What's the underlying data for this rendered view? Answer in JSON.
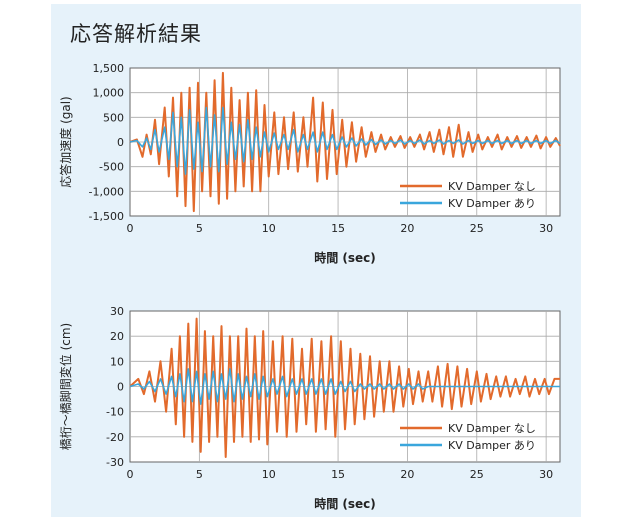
{
  "title": "応答解析結果",
  "colors": {
    "without": "#e26a2c",
    "with": "#3aa6dc",
    "panel": "#e6f2fa"
  },
  "chart_data": [
    {
      "type": "line",
      "title": "",
      "xlabel": "時間 (sec)",
      "ylabel": "応答加速度 (gal)",
      "xlim": [
        0,
        31
      ],
      "ylim": [
        -1500,
        1500
      ],
      "xticks": [
        0,
        5,
        10,
        15,
        20,
        25,
        30
      ],
      "yticks": [
        1500,
        1000,
        500,
        0,
        -500,
        -1000,
        -1500
      ],
      "ytick_labels": [
        "1,500",
        "1,000",
        "500",
        "0",
        "-500",
        "-1,000",
        "-1,500"
      ],
      "grid": true,
      "legend": "bottom-right",
      "series": [
        {
          "name": "KV Damper なし",
          "color": "#e26a2c",
          "x": [
            0,
            0.5,
            0.9,
            1.2,
            1.5,
            1.8,
            2.1,
            2.5,
            2.8,
            3.1,
            3.4,
            3.7,
            4.0,
            4.3,
            4.6,
            4.9,
            5.2,
            5.5,
            5.8,
            6.1,
            6.4,
            6.7,
            7.0,
            7.3,
            7.6,
            7.9,
            8.2,
            8.5,
            8.8,
            9.1,
            9.4,
            9.7,
            10.0,
            10.4,
            10.7,
            11.1,
            11.4,
            11.8,
            12.1,
            12.5,
            12.8,
            13.2,
            13.5,
            13.9,
            14.2,
            14.6,
            14.9,
            15.3,
            15.6,
            16.0,
            16.3,
            16.7,
            17.0,
            17.4,
            17.7,
            18.1,
            18.4,
            18.8,
            19.1,
            19.5,
            19.8,
            20.2,
            20.5,
            20.9,
            21.2,
            21.6,
            21.9,
            22.3,
            22.6,
            23.0,
            23.3,
            23.7,
            24.0,
            24.4,
            24.7,
            25.1,
            25.4,
            25.8,
            26.1,
            26.5,
            26.8,
            27.2,
            27.5,
            27.9,
            28.2,
            28.6,
            28.9,
            29.3,
            29.6,
            30.0,
            30.3,
            30.7,
            31.0
          ],
          "values": [
            0,
            50,
            -300,
            150,
            -250,
            450,
            -450,
            700,
            -700,
            900,
            -1100,
            1000,
            -1300,
            1100,
            -1400,
            1200,
            -1000,
            1000,
            -1100,
            1250,
            -1250,
            1400,
            -1150,
            1100,
            -1000,
            850,
            -900,
            1000,
            -1000,
            1050,
            -1000,
            750,
            -700,
            600,
            -650,
            500,
            -550,
            600,
            -600,
            500,
            -500,
            900,
            -800,
            800,
            -750,
            650,
            -650,
            450,
            -500,
            400,
            -400,
            300,
            -300,
            200,
            -200,
            150,
            -150,
            100,
            -100,
            120,
            -120,
            100,
            -100,
            150,
            -150,
            200,
            -200,
            250,
            -250,
            300,
            -300,
            350,
            -300,
            200,
            -200,
            150,
            -150,
            100,
            -100,
            150,
            -150,
            100,
            -100,
            120,
            -120,
            100,
            -100,
            130,
            -130,
            100,
            -100,
            80,
            -80
          ]
        },
        {
          "name": "KV Damper あり",
          "color": "#3aa6dc",
          "x": [
            0,
            0.5,
            0.9,
            1.2,
            1.5,
            1.8,
            2.1,
            2.5,
            2.8,
            3.1,
            3.4,
            3.7,
            4.0,
            4.3,
            4.6,
            4.9,
            5.2,
            5.5,
            5.8,
            6.1,
            6.4,
            6.7,
            7.0,
            7.3,
            7.6,
            7.9,
            8.2,
            8.5,
            8.8,
            9.1,
            9.4,
            9.7,
            10.0,
            10.4,
            10.7,
            11.1,
            11.4,
            11.8,
            12.1,
            12.5,
            12.8,
            13.2,
            13.5,
            13.9,
            14.2,
            14.6,
            14.9,
            15.3,
            15.6,
            16.0,
            16.3,
            16.7,
            17.0,
            17.4,
            17.7,
            18.1,
            18.4,
            18.8,
            19.1,
            19.5,
            19.8,
            20.2,
            20.5,
            20.9,
            21.2,
            21.6,
            21.9,
            22.3,
            22.6,
            23.0,
            23.3,
            23.7,
            24.0,
            24.4,
            24.7,
            25.1,
            25.4,
            25.8,
            26.1,
            26.5,
            26.8,
            27.2,
            27.5,
            27.9,
            28.2,
            28.6,
            28.9,
            29.3,
            29.6,
            30.0,
            30.3,
            30.7,
            31.0
          ],
          "values": [
            0,
            30,
            -100,
            80,
            -150,
            250,
            -200,
            300,
            -350,
            600,
            -500,
            500,
            -650,
            650,
            -550,
            400,
            -600,
            700,
            -500,
            550,
            -600,
            700,
            -450,
            400,
            -350,
            350,
            -400,
            450,
            -350,
            300,
            -300,
            200,
            -200,
            180,
            -150,
            150,
            -150,
            250,
            -200,
            150,
            -150,
            200,
            -200,
            200,
            -150,
            150,
            -150,
            100,
            -100,
            80,
            -80,
            60,
            -60,
            50,
            -50,
            40,
            -40,
            30,
            -30,
            40,
            -40,
            30,
            -30,
            40,
            -40,
            30,
            -30,
            40,
            -40,
            30,
            -30,
            40,
            -40,
            30,
            -30,
            30,
            -30,
            30,
            -30,
            30,
            -30,
            30,
            -30,
            30,
            -30,
            30,
            -30,
            30,
            -30,
            30,
            -30,
            30,
            -30
          ]
        }
      ]
    },
    {
      "type": "line",
      "title": "",
      "xlabel": "時間 (sec)",
      "ylabel": "橋桁〜橋脚間変位 (cm)",
      "xlim": [
        0,
        31
      ],
      "ylim": [
        -30,
        30
      ],
      "xticks": [
        0,
        5,
        10,
        15,
        20,
        25,
        30
      ],
      "yticks": [
        30,
        20,
        10,
        0,
        -10,
        -20,
        -30
      ],
      "ytick_labels": [
        "30",
        "20",
        "10",
        "0",
        "-10",
        "-20",
        "-30"
      ],
      "grid": true,
      "legend": "bottom-right",
      "series": [
        {
          "name": "KV Damper なし",
          "color": "#e26a2c",
          "x": [
            0,
            0.6,
            1.0,
            1.4,
            1.8,
            2.2,
            2.6,
            3.0,
            3.3,
            3.6,
            3.9,
            4.2,
            4.5,
            4.8,
            5.1,
            5.4,
            5.7,
            6.0,
            6.3,
            6.6,
            6.9,
            7.2,
            7.5,
            7.8,
            8.1,
            8.4,
            8.7,
            9.0,
            9.3,
            9.6,
            9.9,
            10.3,
            10.6,
            11.0,
            11.3,
            11.7,
            12.0,
            12.4,
            12.7,
            13.1,
            13.4,
            13.8,
            14.1,
            14.5,
            14.8,
            15.2,
            15.5,
            15.9,
            16.2,
            16.6,
            16.9,
            17.3,
            17.6,
            18.0,
            18.3,
            18.7,
            19.0,
            19.4,
            19.7,
            20.1,
            20.4,
            20.8,
            21.1,
            21.5,
            21.8,
            22.2,
            22.5,
            22.9,
            23.2,
            23.6,
            23.9,
            24.3,
            24.6,
            25.0,
            25.3,
            25.7,
            26.0,
            26.4,
            26.7,
            27.1,
            27.4,
            27.8,
            28.1,
            28.5,
            28.8,
            29.2,
            29.5,
            29.9,
            30.2,
            30.6,
            31.0
          ],
          "values": [
            0,
            3,
            -3,
            6,
            -6,
            10,
            -10,
            15,
            -15,
            20,
            -20,
            25,
            -22,
            27,
            -26,
            22,
            -22,
            20,
            -20,
            24,
            -28,
            20,
            -22,
            20,
            -20,
            23,
            -22,
            20,
            -21,
            22,
            -23,
            18,
            -18,
            20,
            -20,
            19,
            -18,
            15,
            -15,
            19,
            -18,
            18,
            -17,
            20,
            -20,
            18,
            -17,
            15,
            -15,
            13,
            -13,
            12,
            -12,
            10,
            -10,
            10,
            -10,
            8,
            -8,
            7,
            -7,
            6,
            -6,
            6,
            -6,
            8,
            -8,
            9,
            -9,
            8,
            -8,
            7,
            -7,
            6,
            -6,
            5,
            -5,
            4,
            -4,
            4,
            -4,
            3,
            -3,
            4,
            -4,
            3,
            -3,
            3,
            -3,
            3,
            3
          ]
        },
        {
          "name": "KV Damper あり",
          "color": "#3aa6dc",
          "x": [
            0,
            0.6,
            1.0,
            1.4,
            1.8,
            2.2,
            2.6,
            3.0,
            3.3,
            3.6,
            3.9,
            4.2,
            4.5,
            4.8,
            5.1,
            5.4,
            5.7,
            6.0,
            6.3,
            6.6,
            6.9,
            7.2,
            7.5,
            7.8,
            8.1,
            8.4,
            8.7,
            9.0,
            9.3,
            9.6,
            9.9,
            10.3,
            10.6,
            11.0,
            11.3,
            11.7,
            12.0,
            12.4,
            12.7,
            13.1,
            13.4,
            13.8,
            14.1,
            14.5,
            14.8,
            15.2,
            15.5,
            15.9,
            16.2,
            16.6,
            16.9,
            17.3,
            17.6,
            18.0,
            18.3,
            18.7,
            19.0,
            19.4,
            19.7,
            20.1,
            20.4,
            20.8,
            21.1,
            21.5,
            21.8,
            22.2,
            22.5,
            22.9,
            23.2,
            23.6,
            23.9,
            24.3,
            24.6,
            25.0,
            25.3,
            25.7,
            26.0,
            26.4,
            26.7,
            27.1,
            27.4,
            27.8,
            28.1,
            28.5,
            28.8,
            29.2,
            29.5,
            29.9,
            30.2,
            30.6,
            31.0
          ],
          "values": [
            0,
            1,
            -1,
            2,
            -2,
            3,
            -3,
            4,
            -4,
            5,
            -6,
            7,
            -6,
            6,
            -7,
            5,
            -5,
            6,
            -6,
            5,
            -5,
            7,
            -6,
            5,
            -5,
            4,
            -4,
            5,
            -5,
            4,
            -4,
            3,
            -3,
            4,
            -4,
            3,
            -3,
            3,
            -3,
            3,
            -3,
            3,
            -3,
            3,
            -3,
            2,
            -2,
            2,
            -2,
            1,
            -1,
            1,
            -1,
            1,
            -1,
            1,
            -1,
            1,
            -1,
            1,
            -1,
            1,
            -1,
            0,
            0,
            0,
            0,
            0,
            0,
            0,
            0,
            0,
            0,
            0,
            0,
            0,
            0,
            0,
            0,
            0,
            0,
            0,
            0,
            0,
            0,
            0,
            0,
            0,
            0,
            0,
            0
          ]
        }
      ]
    }
  ]
}
